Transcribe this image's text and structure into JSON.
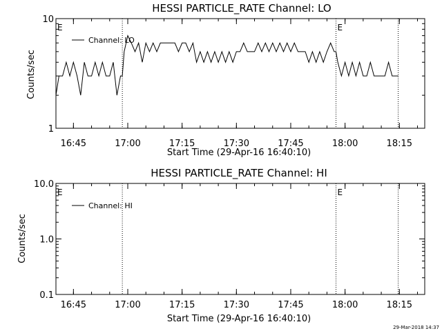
{
  "chart_data": [
    {
      "type": "line",
      "title": "HESSI PARTICLE_RATE Channel: LO",
      "xlabel": "Start Time (29-Apr-16 16:40:10)",
      "ylabel": "Counts/sec",
      "yscale": "log",
      "ylim": [
        1,
        10
      ],
      "xlim": [
        "16:40:10",
        "18:22:00"
      ],
      "y_ticks": [
        "1",
        "10"
      ],
      "x_ticks": [
        "16:45",
        "17:00",
        "17:15",
        "17:30",
        "17:45",
        "18:00",
        "18:15"
      ],
      "event_lines": [
        "16:58:30",
        "17:57:30",
        "18:14:40"
      ],
      "event_markers": [
        {
          "label": "E",
          "time": "16:40:10"
        },
        {
          "label": "E",
          "time": "17:57:30"
        }
      ],
      "legend_position": "top-left",
      "series": [
        {
          "name": "Channel: LO",
          "x": [
            "16:40:10",
            "16:41",
            "16:42",
            "16:43",
            "16:44",
            "16:45",
            "16:46",
            "16:47",
            "16:48",
            "16:49",
            "16:50",
            "16:51",
            "16:52",
            "16:53",
            "16:54",
            "16:55",
            "16:56",
            "16:57",
            "16:58",
            "16:58:30",
            "16:59",
            "17:00",
            "17:01",
            "17:02",
            "17:03",
            "17:04",
            "17:05",
            "17:06",
            "17:07",
            "17:08",
            "17:09",
            "17:10",
            "17:11",
            "17:12",
            "17:13",
            "17:14",
            "17:15",
            "17:16",
            "17:17",
            "17:18",
            "17:19",
            "17:20",
            "17:21",
            "17:22",
            "17:23",
            "17:24",
            "17:25",
            "17:26",
            "17:27",
            "17:28",
            "17:29",
            "17:30",
            "17:31",
            "17:32",
            "17:33",
            "17:34",
            "17:35",
            "17:36",
            "17:37",
            "17:38",
            "17:39",
            "17:40",
            "17:41",
            "17:42",
            "17:43",
            "17:44",
            "17:45",
            "17:46",
            "17:47",
            "17:48",
            "17:49",
            "17:50",
            "17:51",
            "17:52",
            "17:53",
            "17:54",
            "17:55",
            "17:56",
            "17:57",
            "17:57:30",
            "17:58",
            "17:59",
            "18:00",
            "18:01",
            "18:02",
            "18:03",
            "18:04",
            "18:05",
            "18:06",
            "18:07",
            "18:08",
            "18:09",
            "18:10",
            "18:11",
            "18:12",
            "18:13",
            "18:14",
            "18:14:40"
          ],
          "y": [
            2,
            3,
            3,
            4,
            3,
            4,
            3,
            2,
            4,
            3,
            3,
            4,
            3,
            4,
            3,
            3,
            4,
            2,
            3,
            3,
            5,
            7,
            6,
            5,
            6,
            4,
            6,
            5,
            6,
            5,
            6,
            6,
            6,
            6,
            6,
            5,
            6,
            6,
            5,
            6,
            4,
            5,
            4,
            5,
            4,
            5,
            4,
            5,
            4,
            5,
            4,
            5,
            5,
            6,
            5,
            5,
            5,
            6,
            5,
            6,
            5,
            6,
            5,
            6,
            5,
            6,
            5,
            6,
            5,
            5,
            5,
            4,
            5,
            4,
            5,
            4,
            5,
            6,
            5,
            5,
            4,
            3,
            4,
            3,
            4,
            3,
            4,
            3,
            3,
            4,
            3,
            3,
            3,
            3,
            4,
            3,
            3,
            3
          ]
        }
      ]
    },
    {
      "type": "line",
      "title": "HESSI PARTICLE_RATE Channel: HI",
      "xlabel": "Start Time (29-Apr-16 16:40:10)",
      "ylabel": "Counts/sec",
      "yscale": "log",
      "ylim": [
        0.1,
        10.0
      ],
      "xlim": [
        "16:40:10",
        "18:22:00"
      ],
      "y_ticks": [
        "0.1",
        "1.0",
        "10.0"
      ],
      "x_ticks": [
        "16:45",
        "17:00",
        "17:15",
        "17:30",
        "17:45",
        "18:00",
        "18:15"
      ],
      "event_lines": [
        "16:58:30",
        "17:57:30",
        "18:14:40"
      ],
      "event_markers": [
        {
          "label": "E",
          "time": "16:40:10"
        },
        {
          "label": "E",
          "time": "17:57:30"
        }
      ],
      "legend_position": "top-left",
      "series": [
        {
          "name": "Channel: HI",
          "x": [],
          "y": []
        }
      ]
    }
  ],
  "footer": {
    "timestamp": "29-Mar-2018 14:37"
  }
}
